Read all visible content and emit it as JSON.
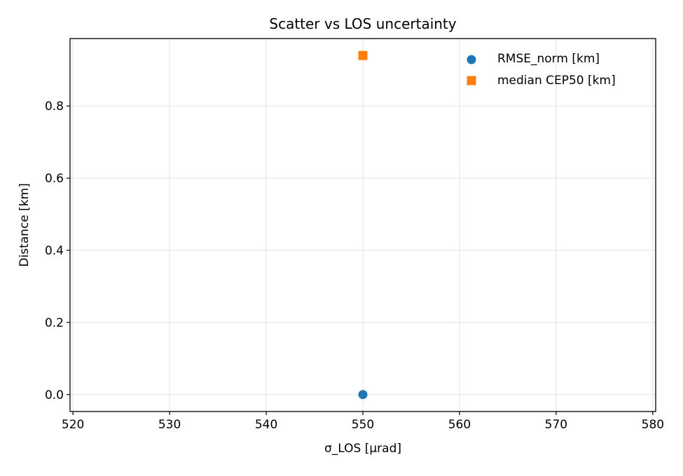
{
  "chart_data": {
    "type": "scatter",
    "title": "Scatter vs LOS uncertainty",
    "xlabel": "σ_LOS [µrad]",
    "ylabel": "Distance [km]",
    "xlim": [
      519.7,
      580.3
    ],
    "ylim": [
      -0.047,
      0.987
    ],
    "xticks": [
      520,
      530,
      540,
      550,
      560,
      570,
      580
    ],
    "xtick_labels": [
      "520",
      "530",
      "540",
      "550",
      "560",
      "570",
      "580"
    ],
    "yticks": [
      0.0,
      0.2,
      0.4,
      0.6,
      0.8
    ],
    "ytick_labels": [
      "0.0",
      "0.2",
      "0.4",
      "0.6",
      "0.8"
    ],
    "grid": true,
    "legend_position": "top-right",
    "series": [
      {
        "name": "RMSE_norm [km]",
        "marker": "circle",
        "color": "#1f77b4",
        "x": [
          550
        ],
        "y": [
          0.0
        ]
      },
      {
        "name": "median CEP50 [km]",
        "marker": "square",
        "color": "#ff7f0e",
        "x": [
          550
        ],
        "y": [
          0.94
        ]
      }
    ]
  }
}
